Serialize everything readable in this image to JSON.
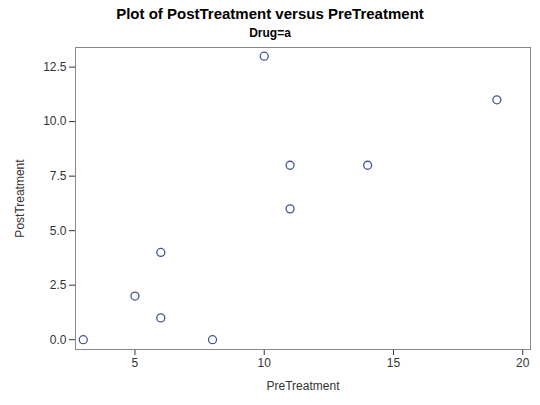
{
  "chart_data": {
    "type": "scatter",
    "title": "Plot of PostTreatment versus PreTreatment",
    "subtitle": "Drug=a",
    "x_label": "PreTreatment",
    "y_label": "PostTreatment",
    "x": [
      11,
      8,
      5,
      14,
      19,
      6,
      10,
      6,
      11,
      3
    ],
    "values": [
      6,
      0,
      2,
      8,
      11,
      4,
      13,
      1,
      8,
      0
    ],
    "color": "#445694",
    "marker": "circle",
    "xlim": [
      2.7,
      20.3
    ],
    "ylim": [
      -0.45,
      13.4
    ],
    "xticks": [
      5,
      10,
      15,
      20
    ],
    "yticks": [
      {
        "value": 0,
        "label": "0.0"
      },
      2.5,
      {
        "value": 5,
        "label": "5.0"
      },
      7.5,
      {
        "value": 10,
        "label": "10.0"
      },
      12.5
    ],
    "grid": false
  }
}
